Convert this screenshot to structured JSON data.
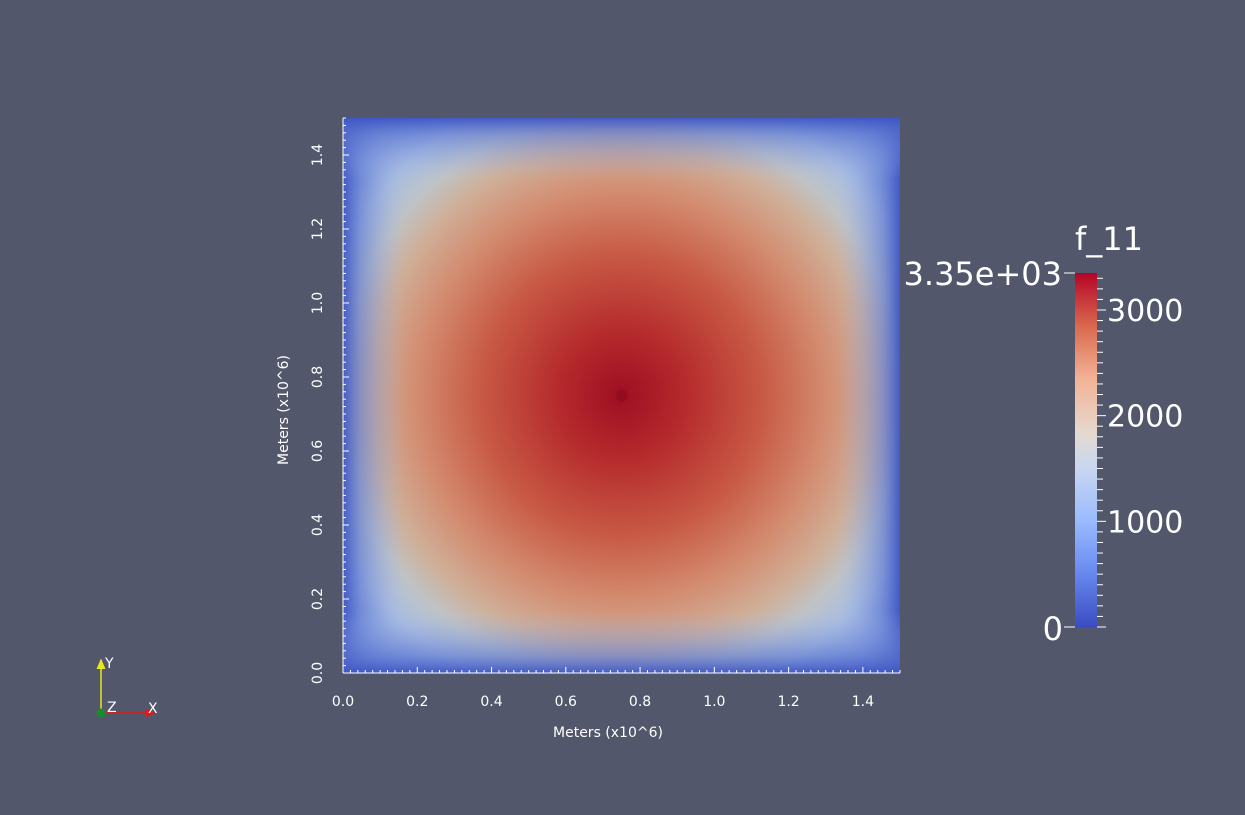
{
  "chart_data": {
    "type": "heatmap",
    "x_range": [
      0.0,
      1.5
    ],
    "y_range": [
      0.0,
      1.5
    ],
    "xlabel": "Meters (x10^6)",
    "ylabel": "Meters (x10^6)",
    "x_ticks": [
      "0.0",
      "0.2",
      "0.4",
      "0.6",
      "0.8",
      "1.0",
      "1.2",
      "1.4"
    ],
    "y_ticks": [
      "0.0",
      "0.2",
      "0.4",
      "0.6",
      "0.8",
      "1.0",
      "1.2",
      "1.4"
    ],
    "peak": {
      "x": 0.75,
      "y": 0.75,
      "value": 3350
    },
    "boundary_value": 0,
    "colorbar": {
      "title": "f_11",
      "min": 0,
      "max": 3350,
      "max_label": "3.35e+03",
      "tick_values": [
        1000,
        2000,
        3000
      ],
      "tick_labels": [
        "1000",
        "2000",
        "3000"
      ],
      "min_label": "0",
      "colormap": "Cool to Warm",
      "colors": {
        "low": "#3b4cc0",
        "mid": "#dddddd",
        "high": "#b40426"
      }
    }
  },
  "orientation_axes": {
    "x_label": "X",
    "y_label": "Y",
    "z_label": "Z"
  }
}
